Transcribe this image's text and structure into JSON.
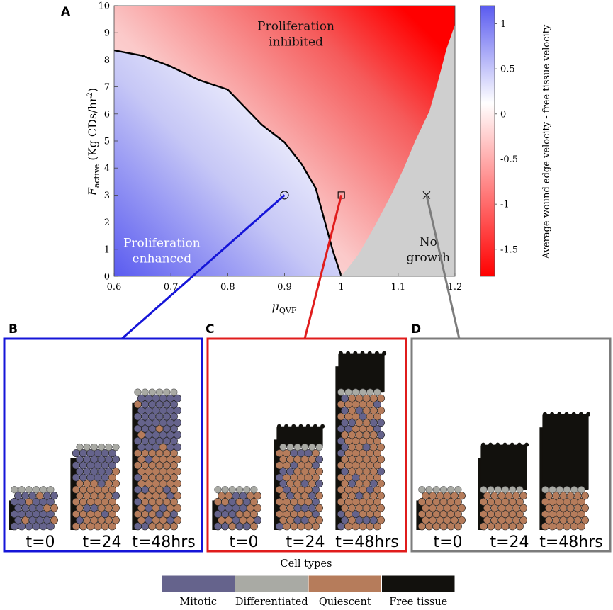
{
  "panels": {
    "a": "A",
    "b": "B",
    "c": "C",
    "d": "D"
  },
  "chart_data": {
    "type": "heatmap",
    "title": "",
    "xlabel": "μQVF",
    "ylabel": "Factive (Kg CDs/hr²)",
    "xlabel_main": "μ",
    "xlabel_sub": "QVF",
    "ylabel_main": "F",
    "ylabel_sub": "active",
    "ylabel_rest": " (Kg CDs/hr",
    "ylabel_sup": "2",
    "ylabel_close": ")",
    "xlim": [
      0.6,
      1.2
    ],
    "ylim": [
      0,
      10
    ],
    "xticks": [
      "0.6",
      "0.7",
      "0.8",
      "0.9",
      "1",
      "1.1",
      "1.2"
    ],
    "yticks": [
      "0",
      "1",
      "2",
      "3",
      "4",
      "5",
      "6",
      "7",
      "8",
      "9",
      "10"
    ],
    "colorbar": {
      "label": "Average wound edge velocity - free tissue velocity",
      "range": [
        -1.8,
        1.2
      ],
      "ticks": [
        "1",
        "0.5",
        "0",
        "-0.5",
        "-1",
        "-1.5"
      ],
      "colors": {
        "max": "#5a5bf0",
        "zero": "#ffffff",
        "min": "#ff0000"
      }
    },
    "neutral_curve": [
      [
        0.6,
        8.35
      ],
      [
        0.65,
        8.15
      ],
      [
        0.7,
        7.75
      ],
      [
        0.75,
        7.25
      ],
      [
        0.8,
        6.9
      ],
      [
        0.83,
        6.25
      ],
      [
        0.86,
        5.6
      ],
      [
        0.9,
        4.95
      ],
      [
        0.93,
        4.15
      ],
      [
        0.955,
        3.25
      ],
      [
        0.97,
        2.1
      ],
      [
        0.985,
        0.95
      ],
      [
        1.0,
        0.0
      ]
    ],
    "no_growth_boundary": [
      [
        1.0,
        0.0
      ],
      [
        1.03,
        0.8
      ],
      [
        1.06,
        1.9
      ],
      [
        1.09,
        3.1
      ],
      [
        1.11,
        4.0
      ],
      [
        1.13,
        5.0
      ],
      [
        1.155,
        6.1
      ],
      [
        1.17,
        7.2
      ],
      [
        1.185,
        8.4
      ],
      [
        1.2,
        9.3
      ]
    ],
    "regions": [
      {
        "label_lines": [
          "Proliferation",
          "inhibited"
        ],
        "x": 0.92,
        "y": 9.1
      },
      {
        "label_lines": [
          "Proliferation",
          "enhanced"
        ],
        "x": 0.684,
        "y": 1.08
      },
      {
        "label_lines": [
          "No",
          "growth"
        ],
        "x": 1.153,
        "y": 1.12
      }
    ],
    "markers": [
      {
        "shape": "circle",
        "x": 0.9,
        "y": 3,
        "panel": "B"
      },
      {
        "shape": "square",
        "x": 1.0,
        "y": 3,
        "panel": "C"
      },
      {
        "shape": "cross",
        "x": 1.15,
        "y": 3,
        "panel": "D"
      }
    ]
  },
  "snapshots": {
    "B": {
      "color": "#1515d8",
      "times": [
        {
          "label": "t=0",
          "free_rows": 0,
          "mitotic_frac": 0.7
        },
        {
          "label": "t=24",
          "free_rows": 0,
          "mitotic_frac": 0.35
        },
        {
          "label": "t=48hrs",
          "free_rows": 0,
          "mitotic_frac": 0.28
        }
      ]
    },
    "C": {
      "color": "#e01c1c",
      "times": [
        {
          "label": "t=0",
          "free_rows": 0,
          "mitotic_frac": 0.55
        },
        {
          "label": "t=24",
          "free_rows": 3,
          "mitotic_frac": 0.25
        },
        {
          "label": "t=48hrs",
          "free_rows": 6,
          "mitotic_frac": 0.2
        }
      ]
    },
    "D": {
      "color": "#7c7c7c",
      "times": [
        {
          "label": "t=0",
          "free_rows": 0,
          "mitotic_frac": 0
        },
        {
          "label": "t=24",
          "free_rows": 7,
          "mitotic_frac": 0
        },
        {
          "label": "t=48hrs",
          "free_rows": 12,
          "mitotic_frac": 0
        }
      ]
    }
  },
  "legend": {
    "title": "Cell types",
    "items": [
      {
        "label": "Mitotic",
        "color": "#65638c"
      },
      {
        "label": "Differentiated",
        "color": "#a9aaa4"
      },
      {
        "label": "Quiescent",
        "color": "#b67c5b"
      },
      {
        "label": "Free tissue",
        "color": "#12110d"
      }
    ]
  }
}
